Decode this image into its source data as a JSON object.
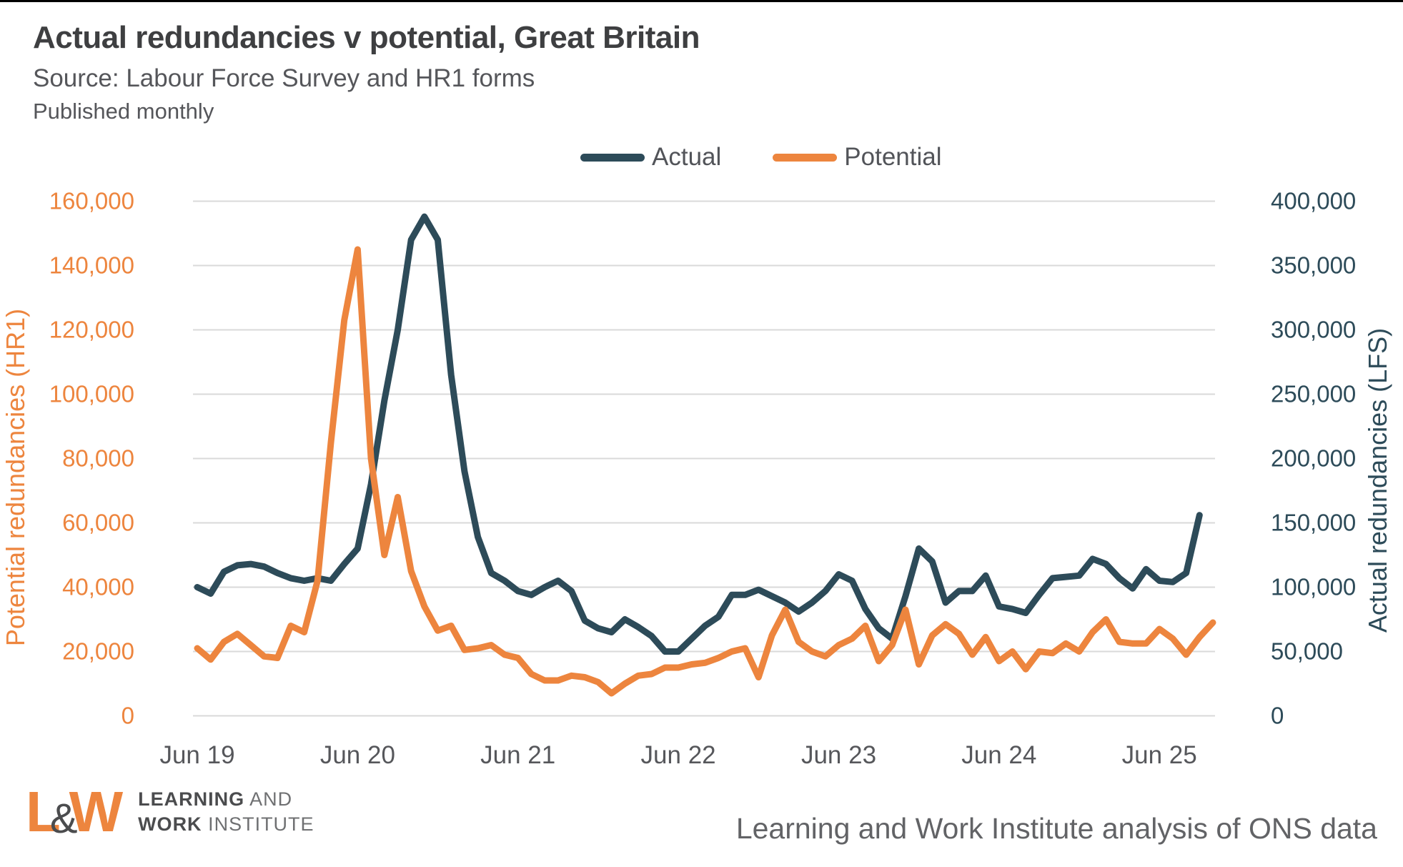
{
  "colors": {
    "accent_orange": "#ed853e",
    "accent_teal": "#2d4b59",
    "grid": "#d9d9d9",
    "axis_text_grey": "#56575b",
    "title_grey": "#3e3f41",
    "text_grey": "#55565a"
  },
  "header": {
    "title": "Actual redundancies v potential, Great Britain",
    "source": "Source: Labour Force Survey and HR1 forms",
    "frequency": "Published monthly"
  },
  "legend": {
    "items": [
      {
        "label": "Actual",
        "color": "#2d4b59"
      },
      {
        "label": "Potential",
        "color": "#ed853e"
      }
    ]
  },
  "footer": {
    "logo": {
      "mark_l": "L",
      "mark_amp": "&",
      "mark_w": "W",
      "line1_strong": "LEARNING",
      "line1_light": " AND",
      "line2_strong": "WORK",
      "line2_light": " INSTITUTE"
    },
    "attribution": "Learning and Work Institute analysis of ONS data"
  },
  "chart_data": {
    "type": "line",
    "title": "Actual redundancies v potential, Great Britain",
    "frequency": "monthly",
    "grid": "horizontal",
    "legend_position": "top-center",
    "x_ticks": [
      {
        "label": "Jun 19",
        "month": 0
      },
      {
        "label": "Jun 20",
        "month": 12
      },
      {
        "label": "Jun 21",
        "month": 24
      },
      {
        "label": "Jun 22",
        "month": 36
      },
      {
        "label": "Jun 23",
        "month": 48
      },
      {
        "label": "Jun 24",
        "month": 60
      },
      {
        "label": "Jun 25",
        "month": 72
      }
    ],
    "left_axis": {
      "label": "Potential redundancies (HR1)",
      "color": "#ed853e",
      "min": 0,
      "max": 160000,
      "tick_step": 20000,
      "tick_labels": [
        "0",
        "20,000",
        "40,000",
        "60,000",
        "80,000",
        "100,000",
        "120,000",
        "140,000",
        "160,000"
      ]
    },
    "right_axis": {
      "label": "Actual redundancies (LFS)",
      "color": "#2d4b59",
      "min": 0,
      "max": 400000,
      "tick_step": 50000,
      "tick_labels": [
        "0",
        "50,000",
        "100,000",
        "150,000",
        "200,000",
        "250,000",
        "300,000",
        "350,000",
        "400,000"
      ]
    },
    "series": [
      {
        "name": "Actual",
        "axis": "right",
        "color": "#2d4b59",
        "start_month": "2019-06",
        "values": [
          100000,
          95000,
          112000,
          117000,
          118000,
          116000,
          111000,
          107000,
          105000,
          107000,
          105000,
          118000,
          130000,
          180000,
          245000,
          300000,
          370000,
          388000,
          370000,
          265000,
          190000,
          139000,
          111000,
          105000,
          97000,
          94000,
          100000,
          105000,
          97000,
          74000,
          68000,
          65000,
          75000,
          69000,
          62000,
          50000,
          50000,
          60000,
          70000,
          77000,
          94000,
          94000,
          98000,
          93000,
          88000,
          81000,
          88000,
          97000,
          110000,
          105000,
          83000,
          68000,
          60000,
          93000,
          130000,
          120000,
          88000,
          97000,
          97000,
          109000,
          85000,
          83000,
          80000,
          94000,
          107000,
          108000,
          109000,
          122000,
          118000,
          107000,
          99000,
          114000,
          105000,
          104000,
          111000,
          156000
        ]
      },
      {
        "name": "Potential",
        "axis": "left",
        "color": "#ed853e",
        "start_month": "2019-06",
        "values": [
          21000,
          17500,
          23000,
          25500,
          22000,
          18500,
          18000,
          28000,
          26000,
          42000,
          85000,
          123000,
          145000,
          80000,
          50000,
          68000,
          45000,
          34000,
          26500,
          28000,
          20500,
          21000,
          22000,
          19000,
          18000,
          13000,
          11000,
          11000,
          12500,
          12000,
          10500,
          7000,
          10000,
          12500,
          13000,
          15000,
          15000,
          16000,
          16500,
          18000,
          20000,
          21000,
          12000,
          25000,
          33000,
          23000,
          20000,
          18500,
          22000,
          24000,
          28000,
          17000,
          22000,
          33000,
          16000,
          25000,
          28500,
          25500,
          19000,
          24500,
          17000,
          20000,
          14500,
          20000,
          19500,
          22500,
          20000,
          26000,
          30000,
          23000,
          22500,
          22500,
          27000,
          24000,
          19000,
          24500,
          29000
        ]
      }
    ]
  }
}
